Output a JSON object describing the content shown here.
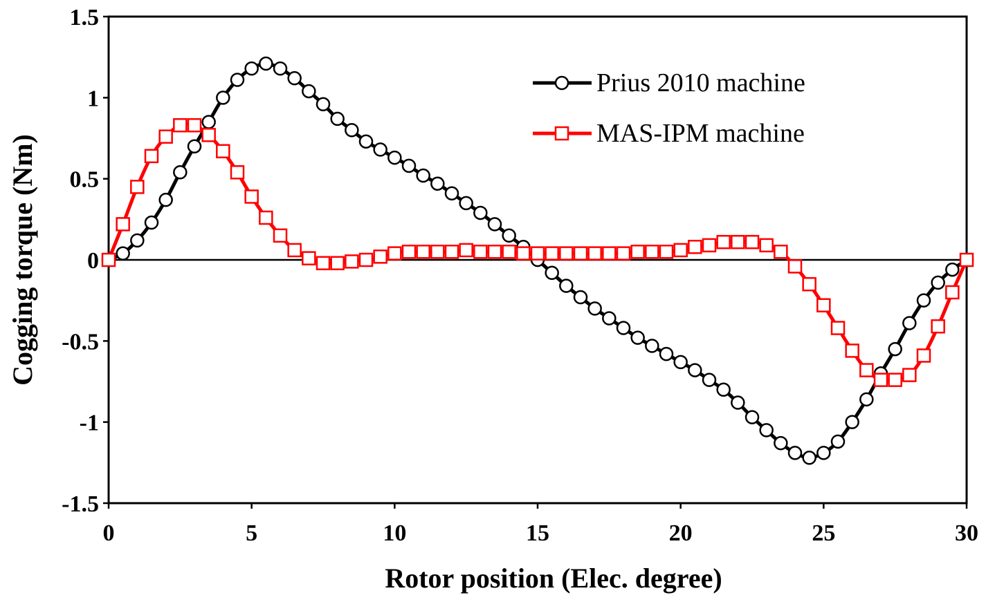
{
  "chart_data": {
    "type": "line",
    "title": "",
    "xlabel": "Rotor position (Elec. degree)",
    "ylabel": "Cogging torque (Nm)",
    "xlim": [
      0,
      30
    ],
    "ylim": [
      -1.5,
      1.5
    ],
    "xticks": [
      0,
      5,
      10,
      15,
      20,
      25,
      30
    ],
    "xtick_labels": [
      "0",
      "5",
      "10",
      "15",
      "20",
      "25",
      "30"
    ],
    "yticks": [
      -1.5,
      -1,
      -0.5,
      0,
      0.5,
      1,
      1.5
    ],
    "ytick_labels": [
      "-1.5",
      "-1",
      "-0.5",
      "0",
      "0.5",
      "1",
      "1.5"
    ],
    "grid": false,
    "legend_position": "top-right",
    "series": [
      {
        "name": "Prius 2010 machine",
        "color": "#000000",
        "marker": "circle",
        "x": [
          0,
          0.5,
          1,
          1.5,
          2,
          2.5,
          3,
          3.5,
          4,
          4.5,
          5,
          5.5,
          6,
          6.5,
          7,
          7.5,
          8,
          8.5,
          9,
          9.5,
          10,
          10.5,
          11,
          11.5,
          12,
          12.5,
          13,
          13.5,
          14,
          14.5,
          15,
          15.5,
          16,
          16.5,
          17,
          17.5,
          18,
          18.5,
          19,
          19.5,
          20,
          20.5,
          21,
          21.5,
          22,
          22.5,
          23,
          23.5,
          24,
          24.5,
          25,
          25.5,
          26,
          26.5,
          27,
          27.5,
          28,
          28.5,
          29,
          29.5,
          30
        ],
        "y": [
          0,
          0.04,
          0.12,
          0.23,
          0.37,
          0.54,
          0.7,
          0.85,
          1.0,
          1.11,
          1.18,
          1.21,
          1.18,
          1.12,
          1.04,
          0.96,
          0.87,
          0.8,
          0.73,
          0.68,
          0.63,
          0.58,
          0.52,
          0.47,
          0.41,
          0.35,
          0.29,
          0.22,
          0.15,
          0.08,
          0.0,
          -0.08,
          -0.16,
          -0.23,
          -0.3,
          -0.36,
          -0.42,
          -0.48,
          -0.53,
          -0.58,
          -0.63,
          -0.68,
          -0.74,
          -0.8,
          -0.88,
          -0.97,
          -1.05,
          -1.13,
          -1.19,
          -1.22,
          -1.19,
          -1.12,
          -1.0,
          -0.86,
          -0.7,
          -0.55,
          -0.39,
          -0.25,
          -0.14,
          -0.06,
          0
        ]
      },
      {
        "name": "MAS-IPM machine",
        "color": "#ff0000",
        "marker": "square",
        "x": [
          0,
          0.5,
          1,
          1.5,
          2,
          2.5,
          3,
          3.5,
          4,
          4.5,
          5,
          5.5,
          6,
          6.5,
          7,
          7.5,
          8,
          8.5,
          9,
          9.5,
          10,
          10.5,
          11,
          11.5,
          12,
          12.5,
          13,
          13.5,
          14,
          14.5,
          15,
          15.5,
          16,
          16.5,
          17,
          17.5,
          18,
          18.5,
          19,
          19.5,
          20,
          20.5,
          21,
          21.5,
          22,
          22.5,
          23,
          23.5,
          24,
          24.5,
          25,
          25.5,
          26,
          26.5,
          27,
          27.5,
          28,
          28.5,
          29,
          29.5,
          30
        ],
        "y": [
          0,
          0.22,
          0.45,
          0.64,
          0.76,
          0.83,
          0.83,
          0.77,
          0.67,
          0.54,
          0.39,
          0.26,
          0.15,
          0.06,
          0.01,
          -0.02,
          -0.02,
          -0.01,
          0.0,
          0.02,
          0.04,
          0.05,
          0.05,
          0.05,
          0.05,
          0.06,
          0.05,
          0.05,
          0.05,
          0.04,
          0.04,
          0.04,
          0.04,
          0.04,
          0.04,
          0.04,
          0.04,
          0.05,
          0.05,
          0.05,
          0.06,
          0.08,
          0.09,
          0.11,
          0.11,
          0.11,
          0.09,
          0.05,
          -0.04,
          -0.15,
          -0.28,
          -0.42,
          -0.56,
          -0.68,
          -0.74,
          -0.74,
          -0.71,
          -0.59,
          -0.41,
          -0.2,
          0
        ]
      }
    ]
  }
}
